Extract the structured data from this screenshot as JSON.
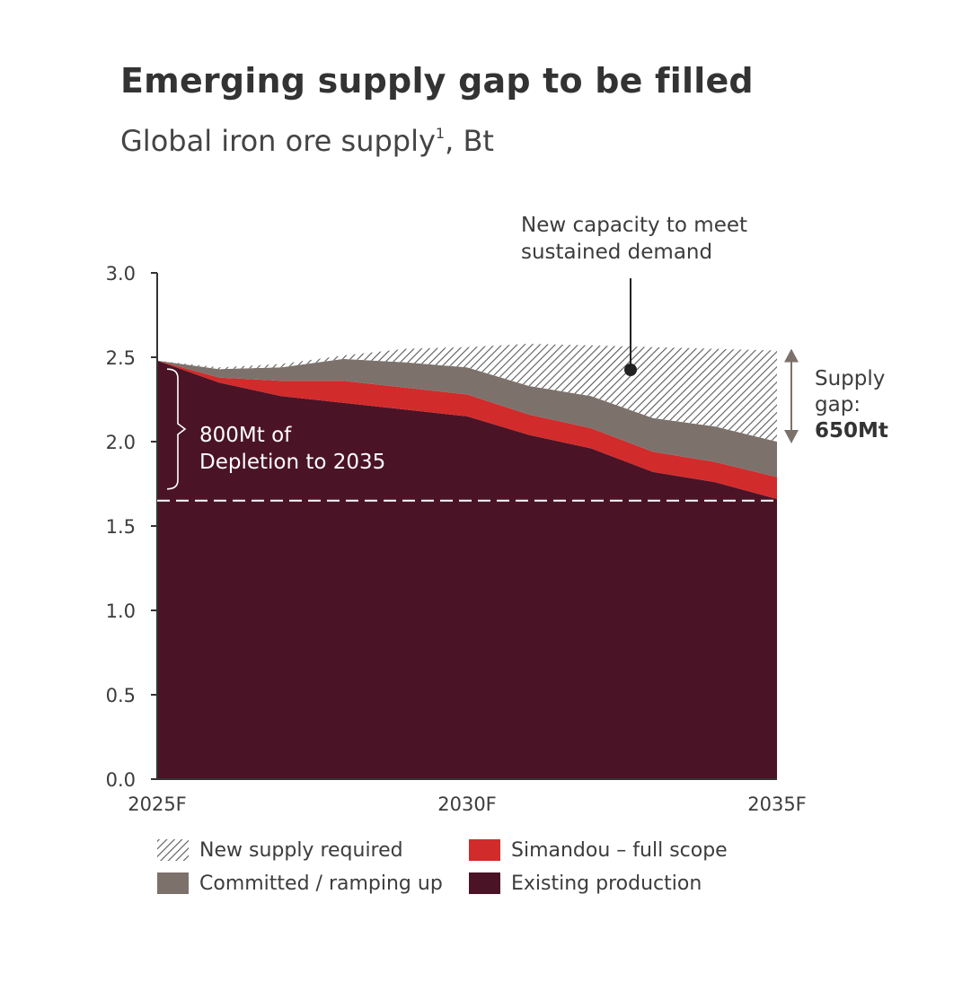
{
  "header": {
    "title": "Emerging supply gap to be filled",
    "subtitle": "Global iron ore supply",
    "subtitle_sup": "1",
    "subtitle_unit": ", Bt"
  },
  "chart_data": {
    "type": "area",
    "stacked": true,
    "title": "Emerging supply gap to be filled",
    "subtitle": "Global iron ore supply¹, Bt",
    "x": [
      2025,
      2026,
      2027,
      2028,
      2029,
      2030,
      2031,
      2032,
      2033,
      2034,
      2035
    ],
    "x_tick_labels": [
      "2025F",
      "2030F",
      "2035F"
    ],
    "x_ticks": [
      2025,
      2030,
      2035
    ],
    "ylim": [
      0,
      3.0
    ],
    "y_ticks": [
      0.0,
      0.5,
      1.0,
      1.5,
      2.0,
      2.5,
      3.0
    ],
    "y_tick_labels": [
      "0.0",
      "0.5",
      "1.0",
      "1.5",
      "2.0",
      "2.5",
      "3.0"
    ],
    "grid": false,
    "series": [
      {
        "name": "Existing production",
        "color": "#4a1426",
        "pattern": "solid",
        "values": [
          2.48,
          2.35,
          2.27,
          2.23,
          2.19,
          2.15,
          2.04,
          1.96,
          1.82,
          1.76,
          1.66
        ]
      },
      {
        "name": "Simandou – full scope",
        "color": "#d22b2b",
        "pattern": "solid",
        "values": [
          0.0,
          0.03,
          0.09,
          0.13,
          0.13,
          0.13,
          0.12,
          0.12,
          0.12,
          0.12,
          0.13
        ]
      },
      {
        "name": "Committed / ramping up",
        "color": "#7d716c",
        "pattern": "solid",
        "values": [
          0.0,
          0.05,
          0.08,
          0.13,
          0.15,
          0.16,
          0.17,
          0.19,
          0.2,
          0.21,
          0.21
        ]
      },
      {
        "name": "New supply required",
        "color": "#555555",
        "pattern": "hatch",
        "values": [
          0.0,
          0.01,
          0.02,
          0.02,
          0.08,
          0.12,
          0.25,
          0.3,
          0.42,
          0.46,
          0.54
        ]
      }
    ],
    "reference_line": {
      "y": 1.65,
      "style": "dashed"
    },
    "annotations": {
      "new_capacity": [
        "New capacity to meet",
        "sustained demand"
      ],
      "depletion": [
        "800Mt of",
        "Depletion to 2035"
      ],
      "supply_gap_label": [
        "Supply",
        "gap:"
      ],
      "supply_gap_value": "650Mt"
    },
    "legend": {
      "placement": "bottom",
      "items": [
        {
          "label": "New supply required",
          "swatch": "hatch"
        },
        {
          "label": "Simandou – full scope",
          "swatch": "#d22b2b"
        },
        {
          "label": "Committed / ramping up",
          "swatch": "#7d716c"
        },
        {
          "label": "Existing production",
          "swatch": "#4a1426"
        }
      ]
    }
  }
}
